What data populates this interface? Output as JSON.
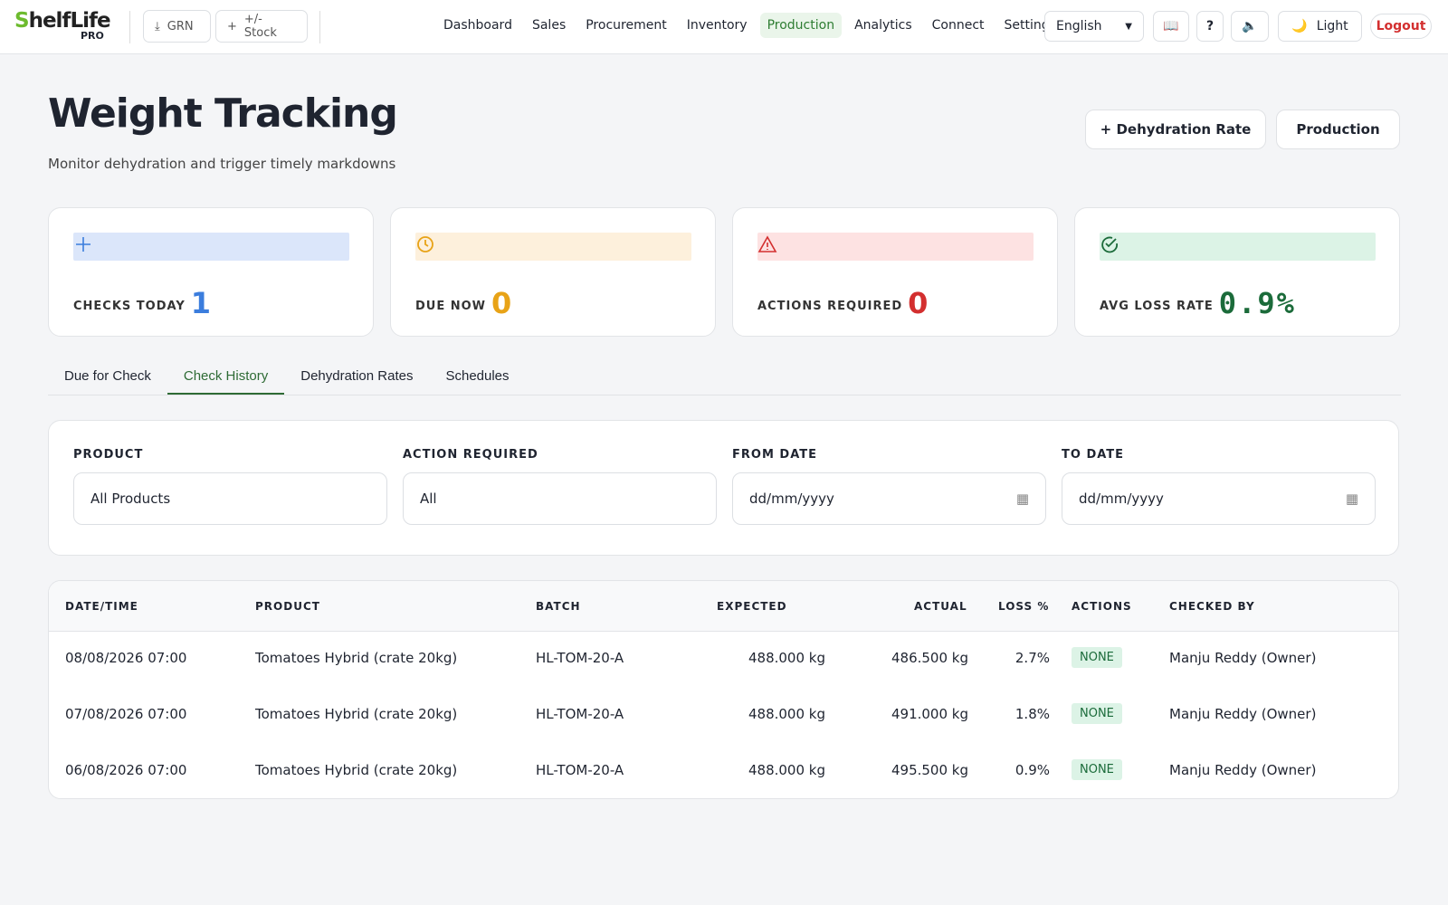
{
  "header": {
    "logo": "ShelfLife",
    "logo_sub": "PRO",
    "quick_actions": [
      "GRN",
      "+/- Stock"
    ],
    "nav": [
      "Dashboard",
      "Sales",
      "Procurement",
      "Inventory",
      "Production",
      "Analytics",
      "Connect",
      "Settings"
    ],
    "language": "English",
    "help": "?",
    "theme": "Light",
    "logout": "Logout"
  },
  "page": {
    "title": "Weight Tracking",
    "subtitle": "Monitor dehydration and trigger timely markdowns",
    "buttons": [
      "+ Dehydration Rate",
      "Production"
    ]
  },
  "stats": [
    {
      "label": "CHECKS TODAY",
      "value": 1
    },
    {
      "label": "DUE NOW",
      "value": 0
    },
    {
      "label": "ACTIONS REQUIRED",
      "value": 0
    },
    {
      "label": "AVG LOSS RATE",
      "value": "0.9%"
    }
  ],
  "tabs": [
    "Due for Check",
    "Check History",
    "Dehydration Rates",
    "Schedules"
  ],
  "filters": [
    {
      "label": "PRODUCT",
      "value": "All Products"
    },
    {
      "label": "ACTION REQUIRED",
      "value": "All"
    },
    {
      "label": "FROM DATE",
      "value": "dd/mm/yyyy"
    },
    {
      "label": "TO DATE",
      "value": "dd/mm/yyyy"
    }
  ],
  "table": {
    "headers": [
      "DATE/TIME",
      "PRODUCT",
      "BATCH",
      "EXPECTED",
      "ACTUAL",
      "LOSS %",
      "ACTIONS",
      "CHECKED BY"
    ],
    "rows": [
      [
        "08/08/2026 07:00",
        "Tomatoes Hybrid (crate 20kg)",
        "HL-TOM-20-A",
        "488.000 kg",
        "486.500 kg",
        "2.7%",
        "NONE",
        "Manju Reddy (Owner)"
      ],
      [
        "07/08/2026 07:00",
        "Tomatoes Hybrid (crate 20kg)",
        "HL-TOM-20-A",
        "488.000 kg",
        "491.000 kg",
        "1.8%",
        "NONE",
        "Manju Reddy (Owner)"
      ],
      [
        "06/08/2026 07:00",
        "Tomatoes Hybrid (crate 20kg)",
        "HL-TOM-20-A",
        "488.000 kg",
        "495.500 kg",
        "0.9%",
        "NONE",
        "Manju Reddy (Owner)"
      ]
    ]
  }
}
